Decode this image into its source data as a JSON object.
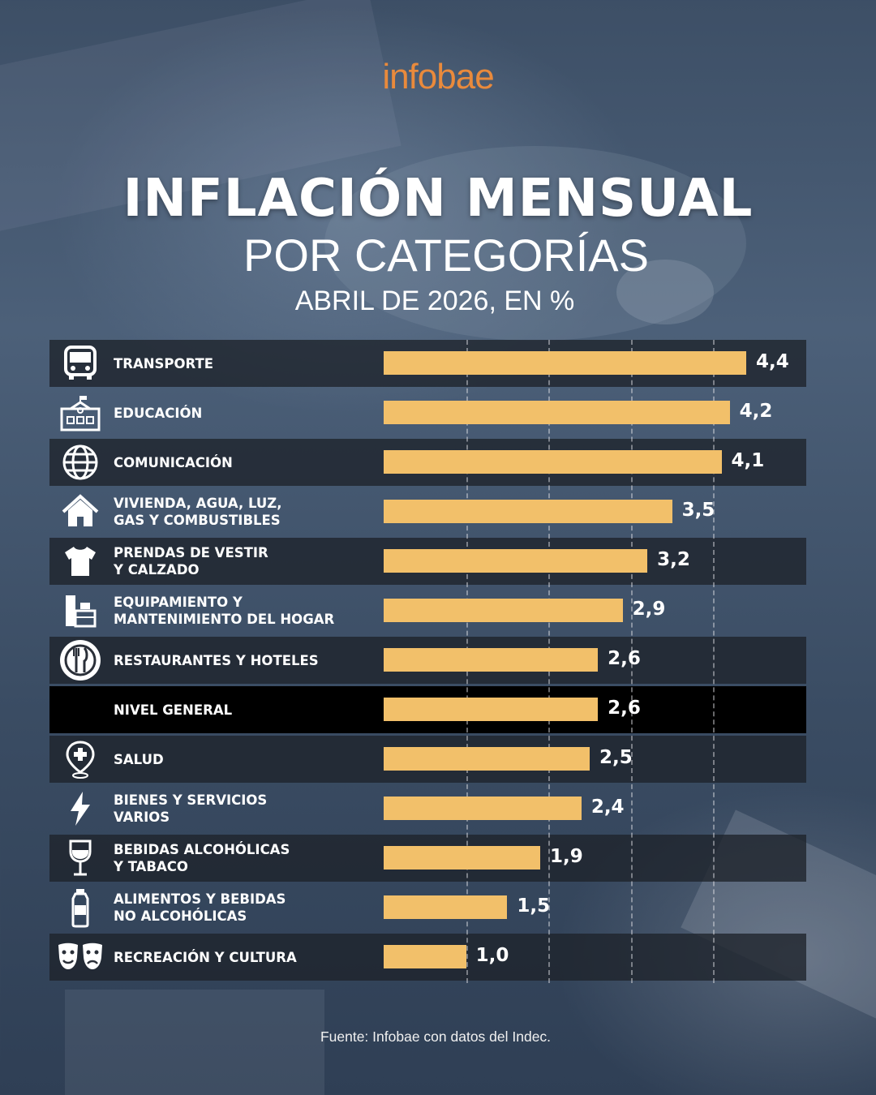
{
  "brand": "infobae",
  "header": {
    "title": "INFLACIÓN MENSUAL",
    "subtitle": "POR CATEGORÍAS",
    "period": "ABRIL DE 2026, EN %"
  },
  "source": "Fuente: Infobae con datos del Indec.",
  "colors": {
    "bar": "#f2c06a",
    "brand": "#e98a3c",
    "row_dark": "#1e222a",
    "highlight": "#000000"
  },
  "chart_data": {
    "type": "bar",
    "orientation": "horizontal",
    "categories": [
      "TRANSPORTE",
      "EDUCACIÓN",
      "COMUNICACIÓN",
      "VIVIENDA, AGUA, LUZ,\nGAS Y COMBUSTIBLES",
      "PRENDAS DE VESTIR\nY CALZADO",
      "EQUIPAMIENTO Y\nMANTENIMIENTO DEL HOGAR",
      "RESTAURANTES Y HOTELES",
      "NIVEL GENERAL",
      "SALUD",
      "BIENES Y SERVICIOS\nVARIOS",
      "BEBIDAS ALCOHÓLICAS\nY TABACO",
      "ALIMENTOS Y BEBIDAS\nNO ALCOHÓLICAS",
      "RECREACIÓN Y CULTURA"
    ],
    "values": [
      4.4,
      4.2,
      4.1,
      3.5,
      3.2,
      2.9,
      2.6,
      2.6,
      2.5,
      2.4,
      1.9,
      1.5,
      1.0
    ],
    "value_labels": [
      "4,4",
      "4,2",
      "4,1",
      "3,5",
      "3,2",
      "2,9",
      "2,6",
      "2,6",
      "2,5",
      "2,4",
      "1,9",
      "1,5",
      "1,0"
    ],
    "icons": [
      "bus-icon",
      "school-icon",
      "globe-icon",
      "house-icon",
      "tshirt-icon",
      "furniture-icon",
      "plate-cutlery-icon",
      "",
      "health-pin-icon",
      "lightning-icon",
      "wine-glass-icon",
      "bottle-icon",
      "theater-masks-icon"
    ],
    "highlighted_category": "NIVEL GENERAL",
    "xlim": [
      0,
      4.4
    ],
    "grid": true
  }
}
